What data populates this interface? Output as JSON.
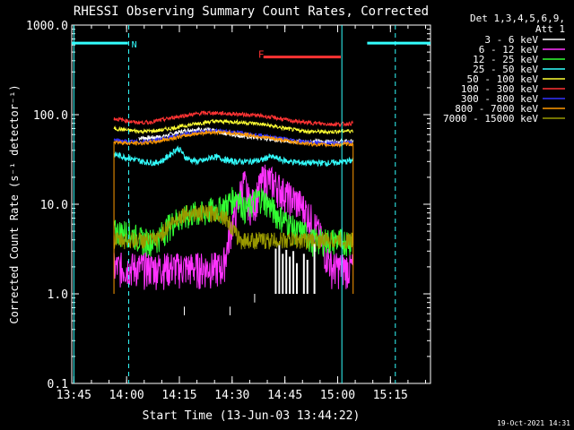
{
  "chart_data": {
    "type": "line",
    "title": "RHESSI Observing Summary Count Rates, Corrected",
    "xlabel": "Start Time (13-Jun-03 13:44:22)",
    "ylabel": "Corrected Count Rate (s⁻¹ detector⁻¹)",
    "x_range_minutes": [
      0,
      102
    ],
    "x_ticks": [
      {
        "label": "13:45",
        "t": 0.6
      },
      {
        "label": "14:00",
        "t": 15.6
      },
      {
        "label": "14:15",
        "t": 30.6
      },
      {
        "label": "14:30",
        "t": 45.6
      },
      {
        "label": "14:45",
        "t": 60.6
      },
      {
        "label": "15:00",
        "t": 75.6
      },
      {
        "label": "15:15",
        "t": 90.6
      }
    ],
    "y_scale": "log",
    "ylim": [
      0.1,
      1000
    ],
    "y_ticks": [
      {
        "label": "0.1",
        "v": 0.1
      },
      {
        "label": "1.0",
        "v": 1
      },
      {
        "label": "10.0",
        "v": 10
      },
      {
        "label": "100.0",
        "v": 100
      },
      {
        "label": "1000.0",
        "v": 1000
      }
    ],
    "legend_header": [
      "Det 1,3,4,5,6,9,",
      "Att 1"
    ],
    "legend_position": "right",
    "series": [
      {
        "name": "3 - 6 keV",
        "color": "#ffffff",
        "points": [
          [
            19,
            55
          ],
          [
            22,
            55
          ],
          [
            26,
            57
          ],
          [
            30,
            63
          ],
          [
            34,
            68
          ],
          [
            38,
            68
          ],
          [
            42,
            64
          ],
          [
            46,
            60
          ],
          [
            50,
            57
          ],
          [
            54,
            55
          ],
          [
            58,
            53
          ],
          [
            62,
            51
          ],
          [
            66,
            50
          ],
          [
            70,
            50
          ],
          [
            74,
            50
          ],
          [
            78,
            50
          ],
          [
            80,
            50
          ]
        ]
      },
      {
        "name": "6 - 12 keV",
        "color": "#ff33ff",
        "points": [
          [
            12,
            2
          ],
          [
            19,
            2
          ],
          [
            25,
            2
          ],
          [
            30,
            2
          ],
          [
            35,
            2
          ],
          [
            40,
            2
          ],
          [
            43,
            2
          ],
          [
            44,
            3
          ],
          [
            45,
            5
          ],
          [
            46,
            7
          ],
          [
            47,
            9
          ],
          [
            48,
            14
          ],
          [
            49,
            18
          ],
          [
            50,
            12
          ],
          [
            51,
            10
          ],
          [
            52,
            11
          ],
          [
            53,
            14
          ],
          [
            54,
            18
          ],
          [
            55,
            20
          ],
          [
            56,
            19
          ],
          [
            58,
            17
          ],
          [
            60,
            14
          ],
          [
            62,
            12
          ],
          [
            64,
            11
          ],
          [
            66,
            9
          ],
          [
            68,
            7
          ],
          [
            70,
            5
          ],
          [
            72,
            3
          ],
          [
            74,
            2
          ],
          [
            76,
            2
          ],
          [
            78,
            2
          ],
          [
            80,
            2
          ]
        ]
      },
      {
        "name": "12 - 25 keV",
        "color": "#33ff33",
        "points": [
          [
            12,
            5
          ],
          [
            16,
            5
          ],
          [
            20,
            4
          ],
          [
            24,
            4
          ],
          [
            26,
            5
          ],
          [
            28,
            6
          ],
          [
            30,
            7
          ],
          [
            32,
            7
          ],
          [
            34,
            8
          ],
          [
            36,
            8
          ],
          [
            38,
            8
          ],
          [
            40,
            9
          ],
          [
            42,
            9
          ],
          [
            44,
            10
          ],
          [
            46,
            12
          ],
          [
            47,
            13
          ],
          [
            48,
            11
          ],
          [
            49,
            9
          ],
          [
            50,
            9
          ],
          [
            51,
            10
          ],
          [
            52,
            11
          ],
          [
            53,
            12
          ],
          [
            54,
            12
          ],
          [
            56,
            10
          ],
          [
            58,
            8
          ],
          [
            60,
            7
          ],
          [
            62,
            6
          ],
          [
            64,
            5
          ],
          [
            66,
            5
          ],
          [
            68,
            4
          ],
          [
            70,
            4
          ],
          [
            72,
            4
          ],
          [
            74,
            4
          ],
          [
            76,
            4
          ],
          [
            78,
            4
          ],
          [
            80,
            4
          ]
        ]
      },
      {
        "name": "25 - 50 keV",
        "color": "#33ffff",
        "points": [
          [
            12,
            36
          ],
          [
            16,
            33
          ],
          [
            20,
            30
          ],
          [
            24,
            29
          ],
          [
            26,
            31
          ],
          [
            28,
            36
          ],
          [
            30,
            42
          ],
          [
            31,
            40
          ],
          [
            32,
            34
          ],
          [
            34,
            31
          ],
          [
            36,
            30
          ],
          [
            38,
            31
          ],
          [
            40,
            34
          ],
          [
            42,
            33
          ],
          [
            44,
            31
          ],
          [
            46,
            30
          ],
          [
            50,
            30
          ],
          [
            54,
            31
          ],
          [
            56,
            34
          ],
          [
            58,
            33
          ],
          [
            60,
            31
          ],
          [
            62,
            30
          ],
          [
            66,
            29
          ],
          [
            70,
            29
          ],
          [
            74,
            29
          ],
          [
            78,
            30
          ],
          [
            80,
            31
          ]
        ]
      },
      {
        "name": "50 - 100 keV",
        "color": "#ffff33",
        "points": [
          [
            12,
            70
          ],
          [
            16,
            67
          ],
          [
            20,
            65
          ],
          [
            24,
            66
          ],
          [
            28,
            70
          ],
          [
            32,
            75
          ],
          [
            36,
            80
          ],
          [
            40,
            84
          ],
          [
            44,
            84
          ],
          [
            48,
            82
          ],
          [
            52,
            80
          ],
          [
            56,
            76
          ],
          [
            60,
            71
          ],
          [
            64,
            67
          ],
          [
            68,
            65
          ],
          [
            72,
            64
          ],
          [
            76,
            65
          ],
          [
            78,
            66
          ],
          [
            80,
            66
          ]
        ]
      },
      {
        "name": "100 - 300 keV",
        "color": "#ff3333",
        "points": [
          [
            12,
            90
          ],
          [
            14,
            88
          ],
          [
            18,
            82
          ],
          [
            22,
            82
          ],
          [
            26,
            88
          ],
          [
            30,
            95
          ],
          [
            34,
            100
          ],
          [
            38,
            105
          ],
          [
            42,
            104
          ],
          [
            46,
            102
          ],
          [
            50,
            100
          ],
          [
            54,
            97
          ],
          [
            58,
            92
          ],
          [
            62,
            86
          ],
          [
            66,
            82
          ],
          [
            70,
            80
          ],
          [
            74,
            78
          ],
          [
            78,
            79
          ],
          [
            80,
            80
          ]
        ]
      },
      {
        "name": "300 - 800 keV",
        "color": "#3333ff",
        "points": [
          [
            12,
            52
          ],
          [
            16,
            50
          ],
          [
            20,
            50
          ],
          [
            24,
            52
          ],
          [
            28,
            56
          ],
          [
            32,
            60
          ],
          [
            36,
            64
          ],
          [
            40,
            66
          ],
          [
            44,
            65
          ],
          [
            48,
            63
          ],
          [
            52,
            60
          ],
          [
            56,
            57
          ],
          [
            60,
            54
          ],
          [
            64,
            51
          ],
          [
            68,
            49
          ],
          [
            72,
            48
          ],
          [
            76,
            48
          ],
          [
            78,
            49
          ],
          [
            80,
            49
          ]
        ]
      },
      {
        "name": "800 - 7000 keV",
        "color": "#ff9900",
        "points": [
          [
            12,
            50
          ],
          [
            16,
            48
          ],
          [
            20,
            48
          ],
          [
            24,
            50
          ],
          [
            28,
            54
          ],
          [
            32,
            58
          ],
          [
            36,
            62
          ],
          [
            40,
            64
          ],
          [
            44,
            63
          ],
          [
            48,
            61
          ],
          [
            52,
            58
          ],
          [
            56,
            55
          ],
          [
            60,
            52
          ],
          [
            64,
            49
          ],
          [
            68,
            47
          ],
          [
            72,
            46
          ],
          [
            76,
            46
          ],
          [
            78,
            47
          ],
          [
            80,
            47
          ]
        ]
      },
      {
        "name": "7000 - 15000 keV",
        "color": "#999900",
        "points": [
          [
            12,
            4
          ],
          [
            16,
            4
          ],
          [
            20,
            4
          ],
          [
            24,
            4
          ],
          [
            26,
            5
          ],
          [
            28,
            6
          ],
          [
            30,
            7
          ],
          [
            32,
            8
          ],
          [
            34,
            8
          ],
          [
            36,
            8
          ],
          [
            38,
            8
          ],
          [
            40,
            8
          ],
          [
            42,
            8
          ],
          [
            44,
            7
          ],
          [
            46,
            5
          ],
          [
            48,
            4
          ],
          [
            50,
            4
          ],
          [
            52,
            4
          ],
          [
            56,
            4
          ],
          [
            60,
            4
          ],
          [
            64,
            4
          ],
          [
            68,
            4
          ],
          [
            72,
            4
          ],
          [
            76,
            4
          ],
          [
            80,
            4
          ]
        ]
      }
    ],
    "annotations": [
      {
        "text": "N",
        "color": "#33ffff"
      },
      {
        "text": "F",
        "color": "#ff3333"
      }
    ],
    "footer_date": "19-Oct-2021 14:31"
  }
}
